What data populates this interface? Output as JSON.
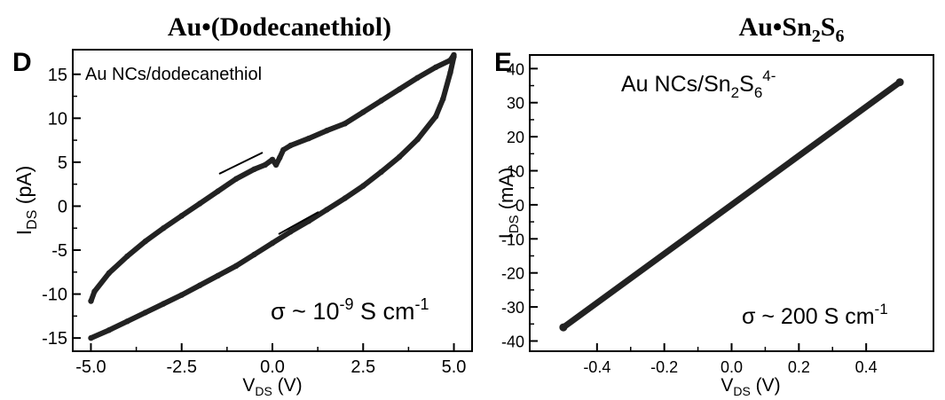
{
  "chart_data": [
    {
      "type": "line",
      "panel_letter": "D",
      "title": "Au•(Dodecanethiol)",
      "annotation": "Au NCs/dodecanethiol",
      "sigma_text": {
        "prefix": "σ ~ 10",
        "exp1": "-9",
        "mid": " S cm",
        "exp2": "-1"
      },
      "xlabel": {
        "main": "V",
        "sub": "DS",
        "unit": " (V)"
      },
      "ylabel": {
        "main": "I",
        "sub": "DS",
        "unit": " (pA)"
      },
      "xlim": [
        -5.5,
        5.5
      ],
      "ylim": [
        -16.5,
        17.8
      ],
      "xticks": [
        -5.0,
        -2.5,
        0.0,
        2.5,
        5.0
      ],
      "xtick_labels": [
        "-5.0",
        "-2.5",
        "0.0",
        "2.5",
        "5.0"
      ],
      "yticks": [
        -15,
        -10,
        -5,
        0,
        5,
        10,
        15
      ],
      "ytick_labels": [
        "-15",
        "-10",
        "-5",
        "0",
        "5",
        "10",
        "15"
      ],
      "series": [
        {
          "x": [
            -5.0,
            -4.9,
            -4.5,
            -4.0,
            -3.5,
            -3.0,
            -2.5,
            -2.0,
            -1.5,
            -1.0,
            -0.5,
            -0.2,
            0.0,
            0.1,
            0.2,
            0.3,
            0.5,
            1.0,
            1.5,
            2.0,
            2.5,
            3.0,
            3.5,
            4.0,
            4.5,
            4.9,
            5.0
          ],
          "y": [
            -10.8,
            -9.7,
            -7.6,
            -5.7,
            -4.0,
            -2.5,
            -1.1,
            0.3,
            1.7,
            3.1,
            4.2,
            4.7,
            5.3,
            4.7,
            5.5,
            6.4,
            6.9,
            7.7,
            8.6,
            9.4,
            10.7,
            12.0,
            13.3,
            14.6,
            15.8,
            16.6,
            17.2
          ]
        },
        {
          "x": [
            5.0,
            4.9,
            4.7,
            4.5,
            4.0,
            3.5,
            3.0,
            2.5,
            2.0,
            1.5,
            1.0,
            0.5,
            0.0,
            -0.5,
            -1.0,
            -1.5,
            -2.0,
            -2.5,
            -3.0,
            -3.5,
            -4.0,
            -4.5,
            -5.0
          ],
          "y": [
            17.0,
            15.2,
            12.2,
            10.2,
            7.6,
            5.6,
            3.9,
            2.3,
            0.9,
            -0.4,
            -1.7,
            -2.9,
            -4.2,
            -5.5,
            -6.8,
            -7.9,
            -9.0,
            -10.1,
            -11.1,
            -12.1,
            -13.1,
            -14.1,
            -15.0
          ]
        }
      ]
    },
    {
      "type": "line",
      "panel_letter": "E",
      "title": {
        "main": "Au•Sn",
        "sub1": "2",
        "mid": "S",
        "sub2": "6"
      },
      "annotation": {
        "a": "Au NCs/Sn",
        "sub1": "2",
        "b": "S",
        "sub2": "6",
        "sup": "4-"
      },
      "sigma_text": {
        "prefix": "σ ~ 200 S cm",
        "exp": "-1"
      },
      "xlabel": {
        "main": "V",
        "sub": "DS",
        "unit": " (V)"
      },
      "ylabel": {
        "main": "I",
        "sub": "DS",
        "unit": " (mA)"
      },
      "xlim": [
        -0.6,
        0.6
      ],
      "ylim": [
        -43,
        44
      ],
      "xticks": [
        -0.4,
        -0.2,
        0.0,
        0.2,
        0.4
      ],
      "xtick_labels": [
        "-0.4",
        "-0.2",
        "0.0",
        "0.2",
        "0.4"
      ],
      "yticks": [
        -40,
        -30,
        -20,
        -10,
        0,
        10,
        20,
        30,
        40
      ],
      "ytick_labels": [
        "-40",
        "-30",
        "-20",
        "-10",
        "0",
        "10",
        "20",
        "30",
        "40"
      ],
      "series": [
        {
          "x": [
            -0.5,
            0.5
          ],
          "y": [
            -36,
            36
          ]
        }
      ]
    }
  ]
}
